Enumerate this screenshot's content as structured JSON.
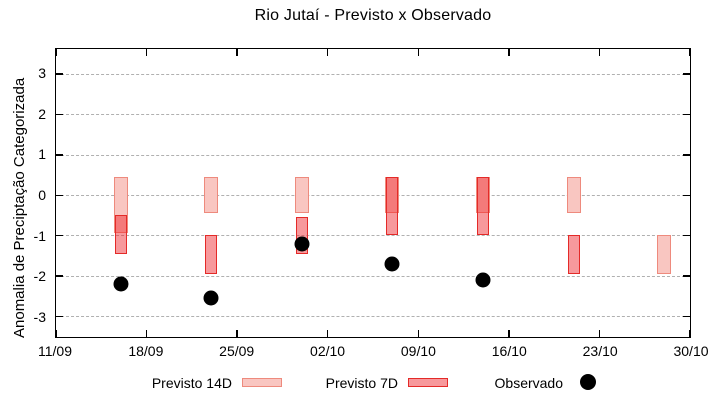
{
  "chart_data": {
    "type": "bar",
    "subtype": "range-bars-with-scatter",
    "title": "Rio Jutaí - Previsto x Observado",
    "xlabel": "",
    "ylabel": "Anomalia de Preciptação Categorizada",
    "ylim": [
      -3.51,
      3.61
    ],
    "y_ticks": [
      3,
      2,
      1,
      0,
      -1,
      -2,
      -3
    ],
    "x_tick_labels": [
      "11/09",
      "18/09",
      "25/09",
      "02/10",
      "09/10",
      "16/10",
      "23/10",
      "30/10"
    ],
    "x_tick_days": [
      0,
      7,
      14,
      21,
      28,
      35,
      42,
      49
    ],
    "xlim_days": [
      0,
      49
    ],
    "grid": "horizontal dashed gray",
    "legend_position": "below plot, horizontal",
    "series": [
      {
        "name": "Previsto 14D",
        "type": "range-bar",
        "fill_color": "#f9c6c1",
        "border_color": "#ee8a7d",
        "points": [
          {
            "date": "16/09",
            "day": 5,
            "lo": -0.95,
            "hi": 0.45
          },
          {
            "date": "23/09",
            "day": 12,
            "lo": -0.45,
            "hi": 0.45
          },
          {
            "date": "30/09",
            "day": 19,
            "lo": -0.45,
            "hi": 0.45
          },
          {
            "date": "07/10",
            "day": 26,
            "lo": -0.45,
            "hi": 0.45
          },
          {
            "date": "14/10",
            "day": 33,
            "lo": -0.45,
            "hi": 0.45
          },
          {
            "date": "21/10",
            "day": 40,
            "lo": -0.45,
            "hi": 0.45
          },
          {
            "date": "28/10",
            "day": 47,
            "lo": -1.95,
            "hi": -1.0
          }
        ]
      },
      {
        "name": "Previsto 7D",
        "type": "range-bar",
        "fill_color": "rgba(237,28,36,0.45)",
        "border_color": "#e42a28",
        "points": [
          {
            "date": "16/09",
            "day": 5,
            "lo": -1.45,
            "hi": -0.5
          },
          {
            "date": "23/09",
            "day": 12,
            "lo": -1.95,
            "hi": -1.0
          },
          {
            "date": "30/09",
            "day": 19,
            "lo": -1.45,
            "hi": -0.55
          },
          {
            "date": "07/10",
            "day": 26,
            "lo": -1.0,
            "hi": 0.45
          },
          {
            "date": "14/10",
            "day": 33,
            "lo": -1.0,
            "hi": 0.45
          },
          {
            "date": "21/10",
            "day": 40,
            "lo": -1.95,
            "hi": -1.0
          }
        ]
      },
      {
        "name": "Observado",
        "type": "scatter",
        "color": "#000000",
        "points": [
          {
            "date": "16/09",
            "day": 5,
            "value": -2.2
          },
          {
            "date": "23/09",
            "day": 12,
            "value": -2.55
          },
          {
            "date": "30/09",
            "day": 19,
            "value": -1.2
          },
          {
            "date": "07/10",
            "day": 26,
            "value": -1.7
          },
          {
            "date": "14/10",
            "day": 33,
            "value": -2.1
          }
        ]
      }
    ]
  },
  "colors": {
    "background": "#ffffff",
    "axis": "#000000",
    "grid": "#b0b0b0",
    "previsto14_fill": "#f9c6c1",
    "previsto14_border": "#ee8a7d",
    "previsto7_fill": "#f79a9c",
    "previsto7_border": "#e42a28",
    "overlap_fill": "#f4797a",
    "observado": "#000000"
  }
}
